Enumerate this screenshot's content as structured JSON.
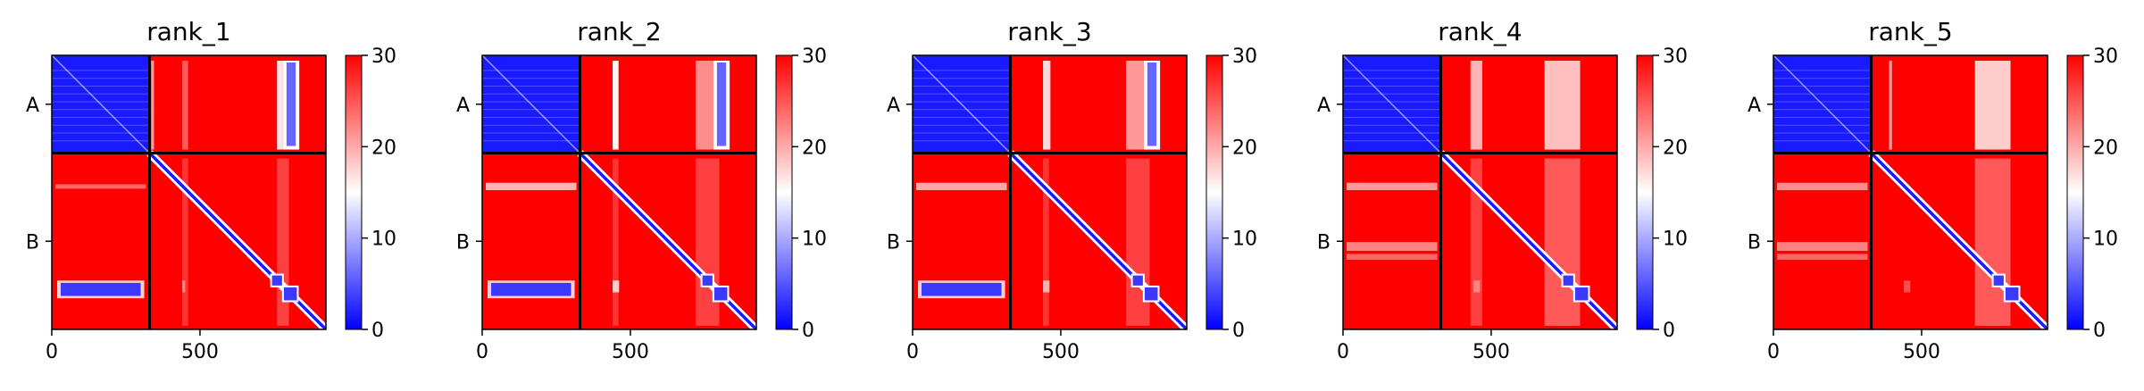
{
  "chart_data": [
    {
      "type": "heatmap",
      "title": "rank_1",
      "x_ticks": [
        0,
        500
      ],
      "y_labels": [
        "A",
        "B"
      ],
      "xlim": [
        0,
        925
      ],
      "chain_boundary": 330,
      "colorbar": {
        "min": 0,
        "max": 30,
        "ticks": [
          0,
          10,
          20,
          30
        ],
        "colors": [
          "#0000ff",
          "#ffffff",
          "#ff0000"
        ]
      },
      "features": {
        "ab_block_low": true,
        "ab_stripes": [
          [
            335,
            345,
            0.6
          ],
          [
            440,
            460,
            0.35
          ],
          [
            760,
            780,
            0.9
          ],
          [
            780,
            835,
            1.0
          ]
        ],
        "ba_band_low": true,
        "ba_rows": [
          [
            105,
            120,
            0.4
          ]
        ],
        "ba_diag_low": [
          [
            440,
            450,
            0.4
          ]
        ],
        "bb_stripes": [
          [
            440,
            460,
            0.2
          ],
          [
            760,
            800,
            0.25
          ]
        ],
        "bb_domains": [
          [
            740,
            780
          ],
          [
            780,
            830
          ]
        ]
      }
    },
    {
      "type": "heatmap",
      "title": "rank_2",
      "x_ticks": [
        0,
        500
      ],
      "y_labels": [
        "A",
        "B"
      ],
      "xlim": [
        0,
        925
      ],
      "chain_boundary": 330,
      "colorbar": {
        "min": 0,
        "max": 30,
        "ticks": [
          0,
          10,
          20,
          30
        ],
        "colors": [
          "#0000ff",
          "#ffffff",
          "#ff0000"
        ]
      },
      "features": {
        "ab_block_low": true,
        "ab_stripes": [
          [
            440,
            460,
            0.95
          ],
          [
            720,
            780,
            0.55
          ],
          [
            780,
            835,
            1.0
          ]
        ],
        "ba_band_low": true,
        "ba_rows": [
          [
            100,
            125,
            0.7
          ]
        ],
        "ba_diag_low": [
          [
            440,
            462,
            0.75
          ]
        ],
        "bb_stripes": [
          [
            440,
            460,
            0.2
          ],
          [
            720,
            800,
            0.25
          ]
        ],
        "bb_domains": [
          [
            740,
            780
          ],
          [
            780,
            830
          ]
        ]
      }
    },
    {
      "type": "heatmap",
      "title": "rank_3",
      "x_ticks": [
        0,
        500
      ],
      "y_labels": [
        "A",
        "B"
      ],
      "xlim": [
        0,
        925
      ],
      "chain_boundary": 330,
      "colorbar": {
        "min": 0,
        "max": 30,
        "ticks": [
          0,
          10,
          20,
          30
        ],
        "colors": [
          "#0000ff",
          "#ffffff",
          "#ff0000"
        ]
      },
      "features": {
        "ab_block_low": true,
        "ab_stripes": [
          [
            440,
            465,
            0.85
          ],
          [
            720,
            780,
            0.6
          ],
          [
            780,
            835,
            1.0
          ]
        ],
        "ba_band_low": true,
        "ba_rows": [
          [
            100,
            125,
            0.65
          ]
        ],
        "ba_diag_low": [
          [
            440,
            462,
            0.6
          ]
        ],
        "bb_stripes": [
          [
            440,
            460,
            0.2
          ],
          [
            720,
            800,
            0.25
          ]
        ],
        "bb_domains": [
          [
            740,
            780
          ],
          [
            780,
            830
          ]
        ]
      }
    },
    {
      "type": "heatmap",
      "title": "rank_4",
      "x_ticks": [
        0,
        500
      ],
      "y_labels": [
        "A",
        "B"
      ],
      "xlim": [
        0,
        925
      ],
      "chain_boundary": 330,
      "colorbar": {
        "min": 0,
        "max": 30,
        "ticks": [
          0,
          10,
          20,
          30
        ],
        "colors": [
          "#0000ff",
          "#ffffff",
          "#ff0000"
        ]
      },
      "features": {
        "ab_block_low": true,
        "ab_stripes": [
          [
            430,
            470,
            0.7
          ],
          [
            680,
            800,
            0.75
          ]
        ],
        "ba_band_low": false,
        "ba_rows": [
          [
            100,
            125,
            0.6
          ],
          [
            300,
            330,
            0.5
          ],
          [
            340,
            360,
            0.4
          ]
        ],
        "ba_diag_low": [
          [
            440,
            462,
            0.35
          ]
        ],
        "bb_stripes": [
          [
            430,
            470,
            0.25
          ],
          [
            680,
            800,
            0.35
          ]
        ],
        "bb_domains": [
          [
            740,
            780
          ],
          [
            780,
            830
          ]
        ]
      }
    },
    {
      "type": "heatmap",
      "title": "rank_5",
      "x_ticks": [
        0,
        500
      ],
      "y_labels": [
        "A",
        "B"
      ],
      "xlim": [
        0,
        925
      ],
      "chain_boundary": 330,
      "colorbar": {
        "min": 0,
        "max": 30,
        "ticks": [
          0,
          10,
          20,
          30
        ],
        "colors": [
          "#0000ff",
          "#ffffff",
          "#ff0000"
        ]
      },
      "features": {
        "ab_block_low": true,
        "ab_stripes": [
          [
            390,
            400,
            0.6
          ],
          [
            680,
            800,
            0.8
          ]
        ],
        "ba_band_low": false,
        "ba_rows": [
          [
            100,
            125,
            0.55
          ],
          [
            300,
            330,
            0.5
          ],
          [
            340,
            360,
            0.4
          ]
        ],
        "ba_diag_low": [
          [
            440,
            462,
            0.3
          ]
        ],
        "bb_stripes": [
          [
            680,
            800,
            0.35
          ]
        ],
        "bb_domains": [
          [
            740,
            780
          ],
          [
            780,
            830
          ]
        ]
      }
    }
  ]
}
